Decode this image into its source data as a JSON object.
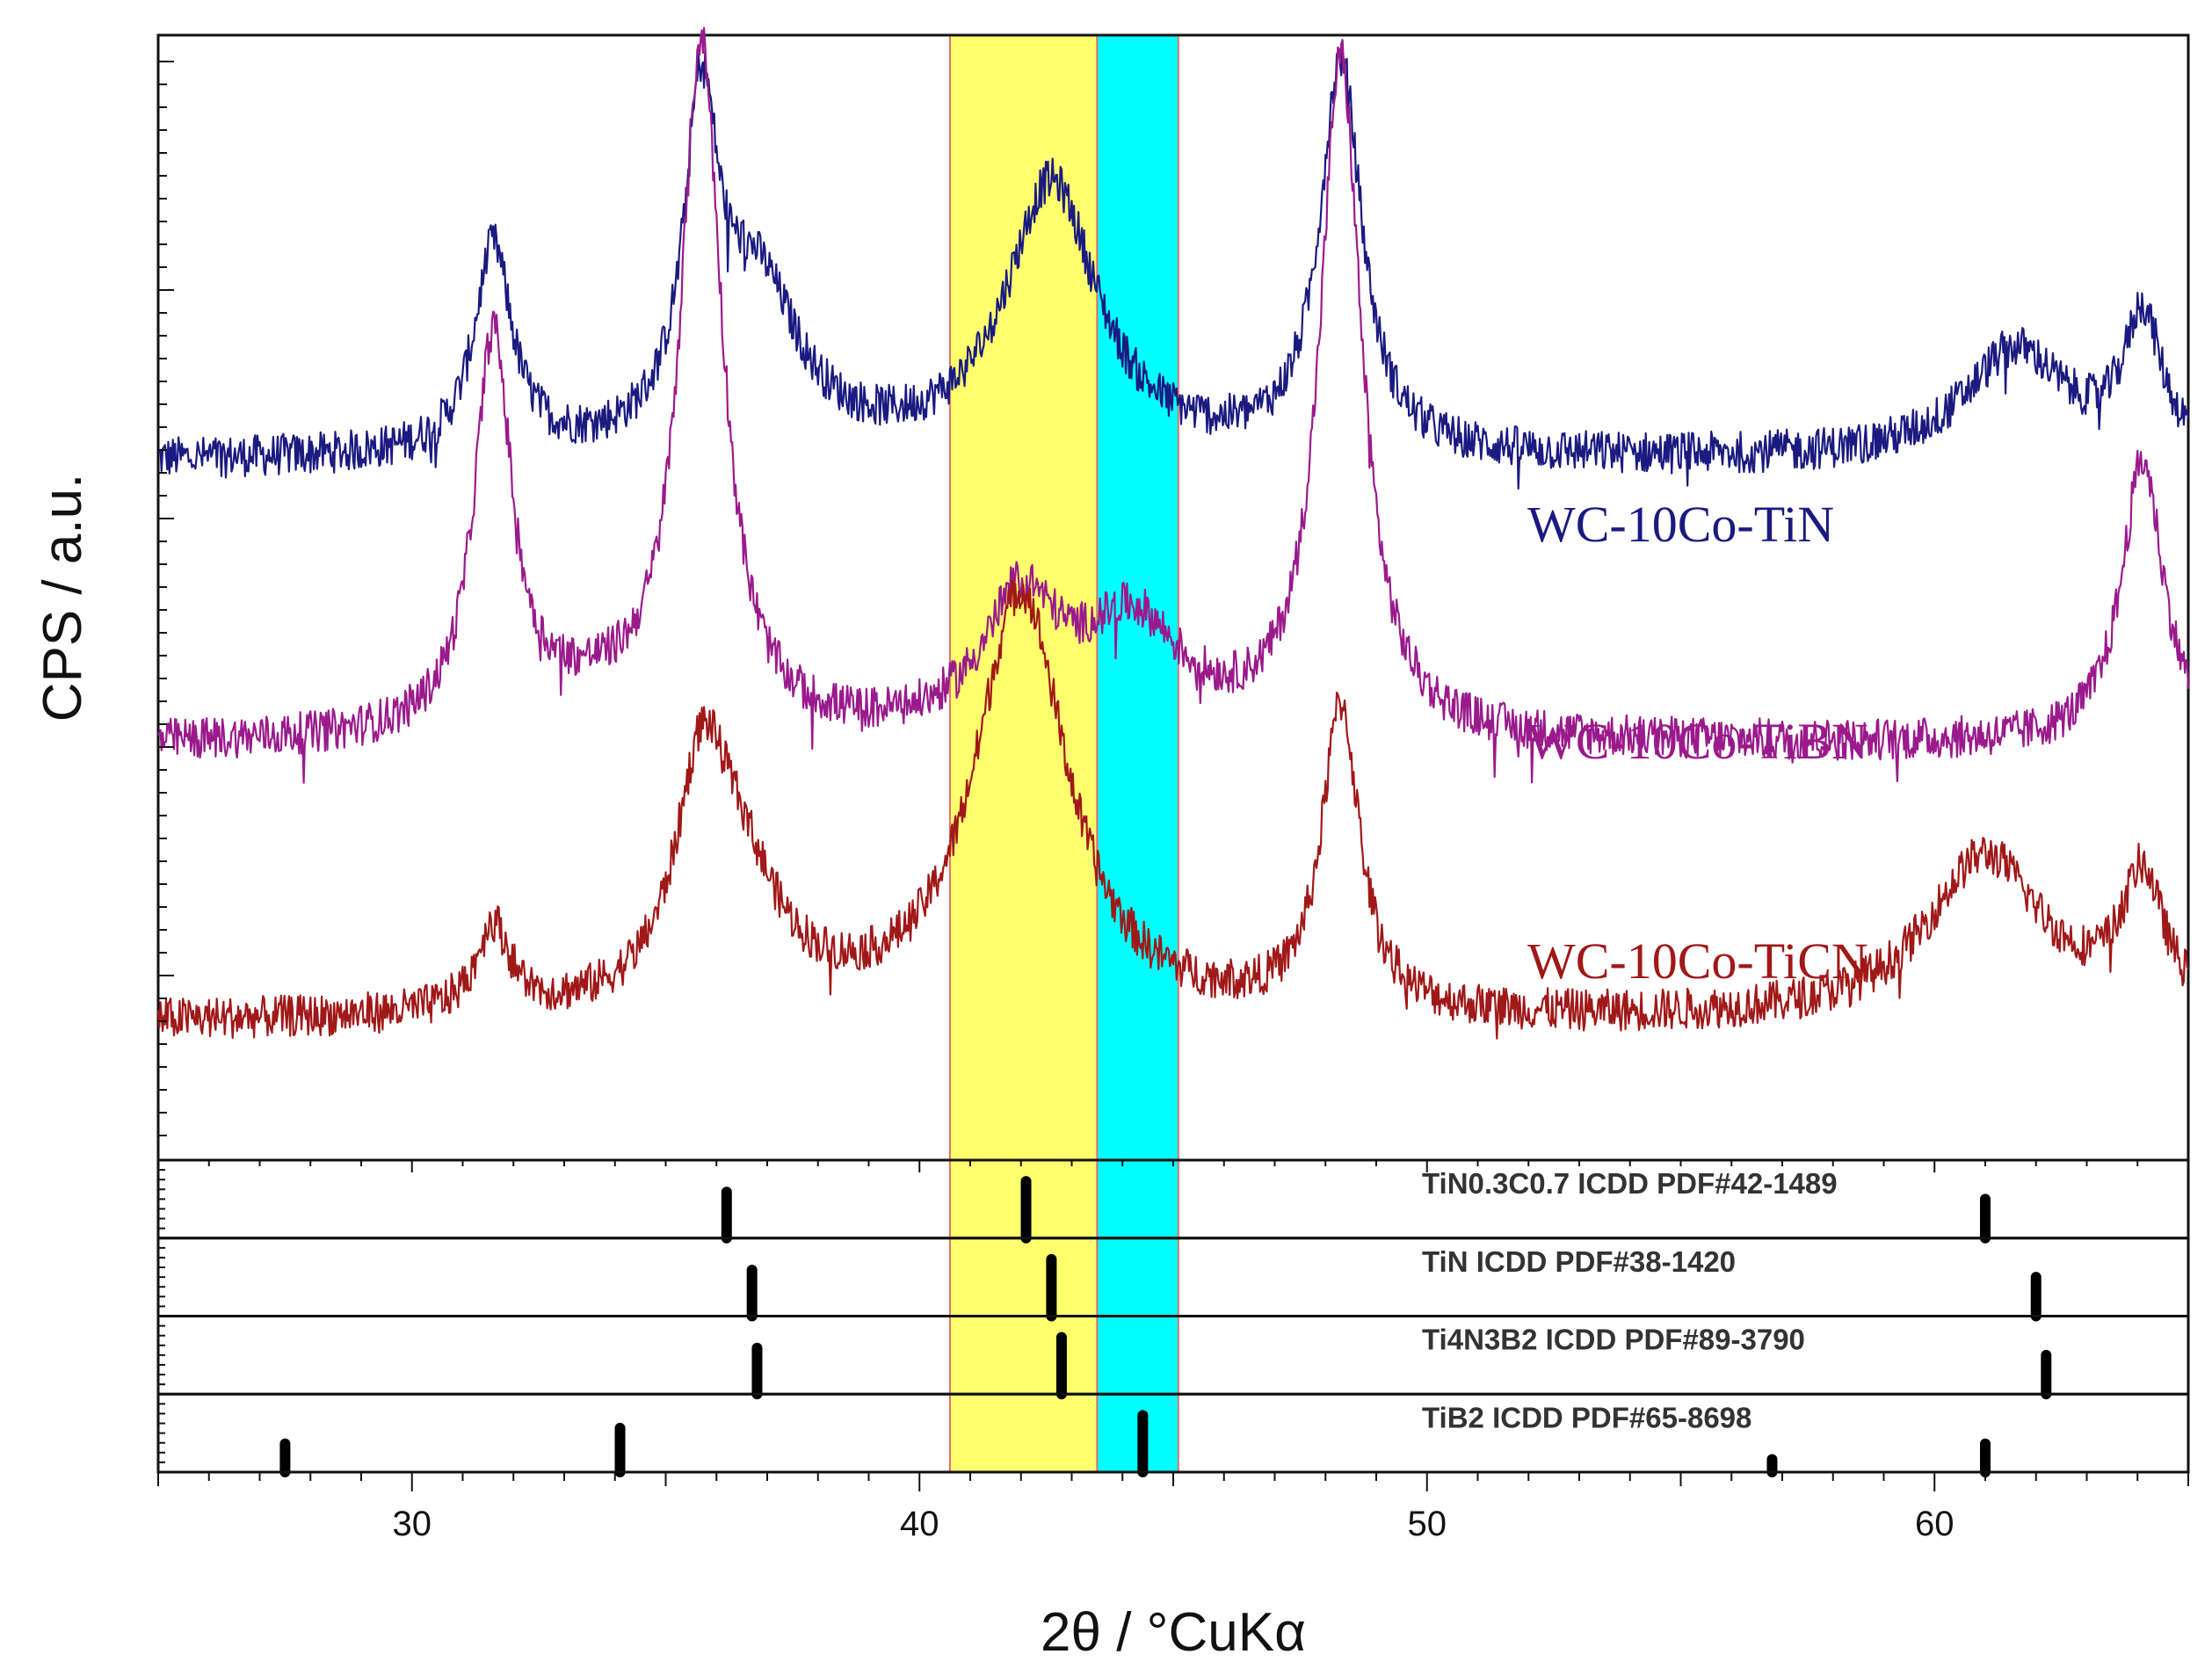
{
  "chart_data": {
    "type": "line",
    "title": "",
    "xlabel": "2θ / °CuKα",
    "ylabel": "CPS / a.u.",
    "xlim": [
      25,
      65
    ],
    "ylim": [
      0,
      100
    ],
    "xticks": [
      30,
      40,
      50,
      60
    ],
    "xtick_labels": [
      "30",
      "40",
      "50",
      "60"
    ],
    "highlight_bands": [
      {
        "name": "yellow-band",
        "x0": 40.6,
        "x1": 43.5,
        "color": "#ffff6e"
      },
      {
        "name": "cyan-band",
        "x0": 43.5,
        "x1": 45.1,
        "color": "#00ffff"
      }
    ],
    "series": [
      {
        "name": "WC-10Co-TiN",
        "color": "#1a1a80",
        "baseline": 62.5,
        "noise": 1.2,
        "peaks": [
          {
            "pos": 31.6,
            "height": 19,
            "width": 0.45
          },
          {
            "pos": 35.7,
            "height": 29,
            "width": 0.4
          },
          {
            "pos": 36.8,
            "height": 15,
            "width": 1.0
          },
          {
            "pos": 42.6,
            "height": 25,
            "width": 1.1
          },
          {
            "pos": 48.3,
            "height": 36,
            "width": 0.5
          },
          {
            "pos": 61.6,
            "height": 10,
            "width": 1.2
          },
          {
            "pos": 64.1,
            "height": 12.5,
            "width": 0.45
          }
        ]
      },
      {
        "name": "WC-10Co-TiBN",
        "color": "#9a1a8c",
        "baseline": 36.5,
        "noise": 1.2,
        "peaks": [
          {
            "pos": 31.6,
            "height": 36,
            "width": 0.45
          },
          {
            "pos": 33.5,
            "height": 3,
            "width": 1.5
          },
          {
            "pos": 35.7,
            "height": 63,
            "width": 0.5
          },
          {
            "pos": 42.0,
            "height": 12,
            "width": 0.9
          },
          {
            "pos": 44.2,
            "height": 10,
            "width": 1.2
          },
          {
            "pos": 48.3,
            "height": 62,
            "width": 0.5
          },
          {
            "pos": 64.1,
            "height": 26,
            "width": 0.5
          }
        ]
      },
      {
        "name": "WC-10Co-TiCN",
        "color": "#a01818",
        "baseline": 11,
        "noise": 1.2,
        "peaks": [
          {
            "pos": 31.6,
            "height": 8,
            "width": 0.4
          },
          {
            "pos": 35.7,
            "height": 18,
            "width": 0.6
          },
          {
            "pos": 36.4,
            "height": 12,
            "width": 1.0
          },
          {
            "pos": 42.0,
            "height": 39,
            "width": 1.1
          },
          {
            "pos": 48.3,
            "height": 28,
            "width": 0.45
          },
          {
            "pos": 61.0,
            "height": 15,
            "width": 1.4
          },
          {
            "pos": 64.1,
            "height": 12,
            "width": 0.5
          }
        ]
      }
    ],
    "reference_patterns": [
      {
        "name": "TiN0.3C0.7 ICDD PDF#42-1489",
        "lines": [
          [
            36.2,
            65
          ],
          [
            42.1,
            80
          ],
          [
            61.0,
            55
          ]
        ]
      },
      {
        "name": "TiN ICDD PDF#38-1420",
        "lines": [
          [
            36.7,
            65
          ],
          [
            42.6,
            80
          ],
          [
            62.0,
            55
          ]
        ]
      },
      {
        "name": "Ti4N3B2 ICDD PDF#89-3790",
        "lines": [
          [
            36.8,
            65
          ],
          [
            42.8,
            80
          ],
          [
            62.2,
            55
          ]
        ]
      },
      {
        "name": "TiB2 ICDD PDF#65-8698",
        "lines": [
          [
            27.5,
            40
          ],
          [
            34.1,
            62
          ],
          [
            44.4,
            80
          ],
          [
            56.8,
            18
          ],
          [
            61.0,
            40
          ]
        ]
      }
    ]
  }
}
